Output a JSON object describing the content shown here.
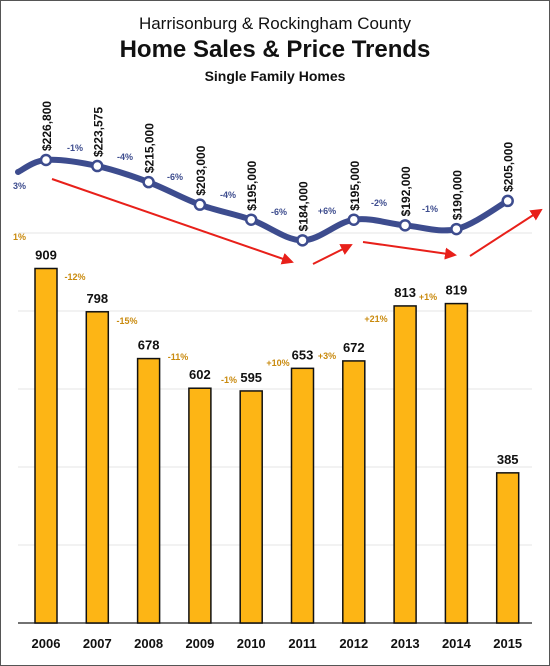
{
  "header": {
    "top_line": "Harrisonburg & Rockingham County",
    "title": "Home Sales & Price Trends",
    "subtitle": "Single Family Homes"
  },
  "colors": {
    "bar_fill": "#FDB515",
    "bar_stroke": "#111111",
    "bar_change_label": "#C98A0E",
    "price_line": "#3D4C8E",
    "price_change_label": "#3D4C8E",
    "trend_arrow": "#E8201A",
    "gridline": "#E6E6E6",
    "text": "#111111"
  },
  "chart_data": [
    {
      "type": "bar",
      "name": "home-sales",
      "categories": [
        "2006",
        "2007",
        "2008",
        "2009",
        "2010",
        "2011",
        "2012",
        "2013",
        "2014",
        "2015"
      ],
      "values": [
        909,
        798,
        678,
        602,
        595,
        653,
        672,
        813,
        819,
        385
      ],
      "value_labels": [
        "909",
        "798",
        "678",
        "602",
        "595",
        "653",
        "672",
        "813",
        "819",
        "385"
      ],
      "change_labels": [
        "-12%",
        "-15%",
        "-11%",
        "-1%",
        "+10%",
        "+3%",
        "+21%",
        "+1%"
      ],
      "partial_left_label": "1%",
      "ylim": [
        0,
        1100
      ],
      "grid": true
    },
    {
      "type": "line",
      "name": "median-price",
      "categories": [
        "2006",
        "2007",
        "2008",
        "2009",
        "2010",
        "2011",
        "2012",
        "2013",
        "2014",
        "2015"
      ],
      "values": [
        226800,
        223575,
        215000,
        203000,
        195000,
        184000,
        195000,
        192000,
        190000,
        205000
      ],
      "value_labels": [
        "$226,800",
        "$223,575",
        "$215,000",
        "$203,000",
        "$195,000",
        "$184,000",
        "$195,000",
        "$192,000",
        "$190,000",
        "$205,000"
      ],
      "change_labels": [
        "-1%",
        "-4%",
        "-6%",
        "-4%",
        "-6%",
        "+6%",
        "-2%",
        "-1%"
      ],
      "partial_left_label": "3%",
      "trend_arrows": [
        "down 2006-2011",
        "up 2011-2012",
        "down 2012-2014",
        "up 2014-2015"
      ]
    }
  ]
}
